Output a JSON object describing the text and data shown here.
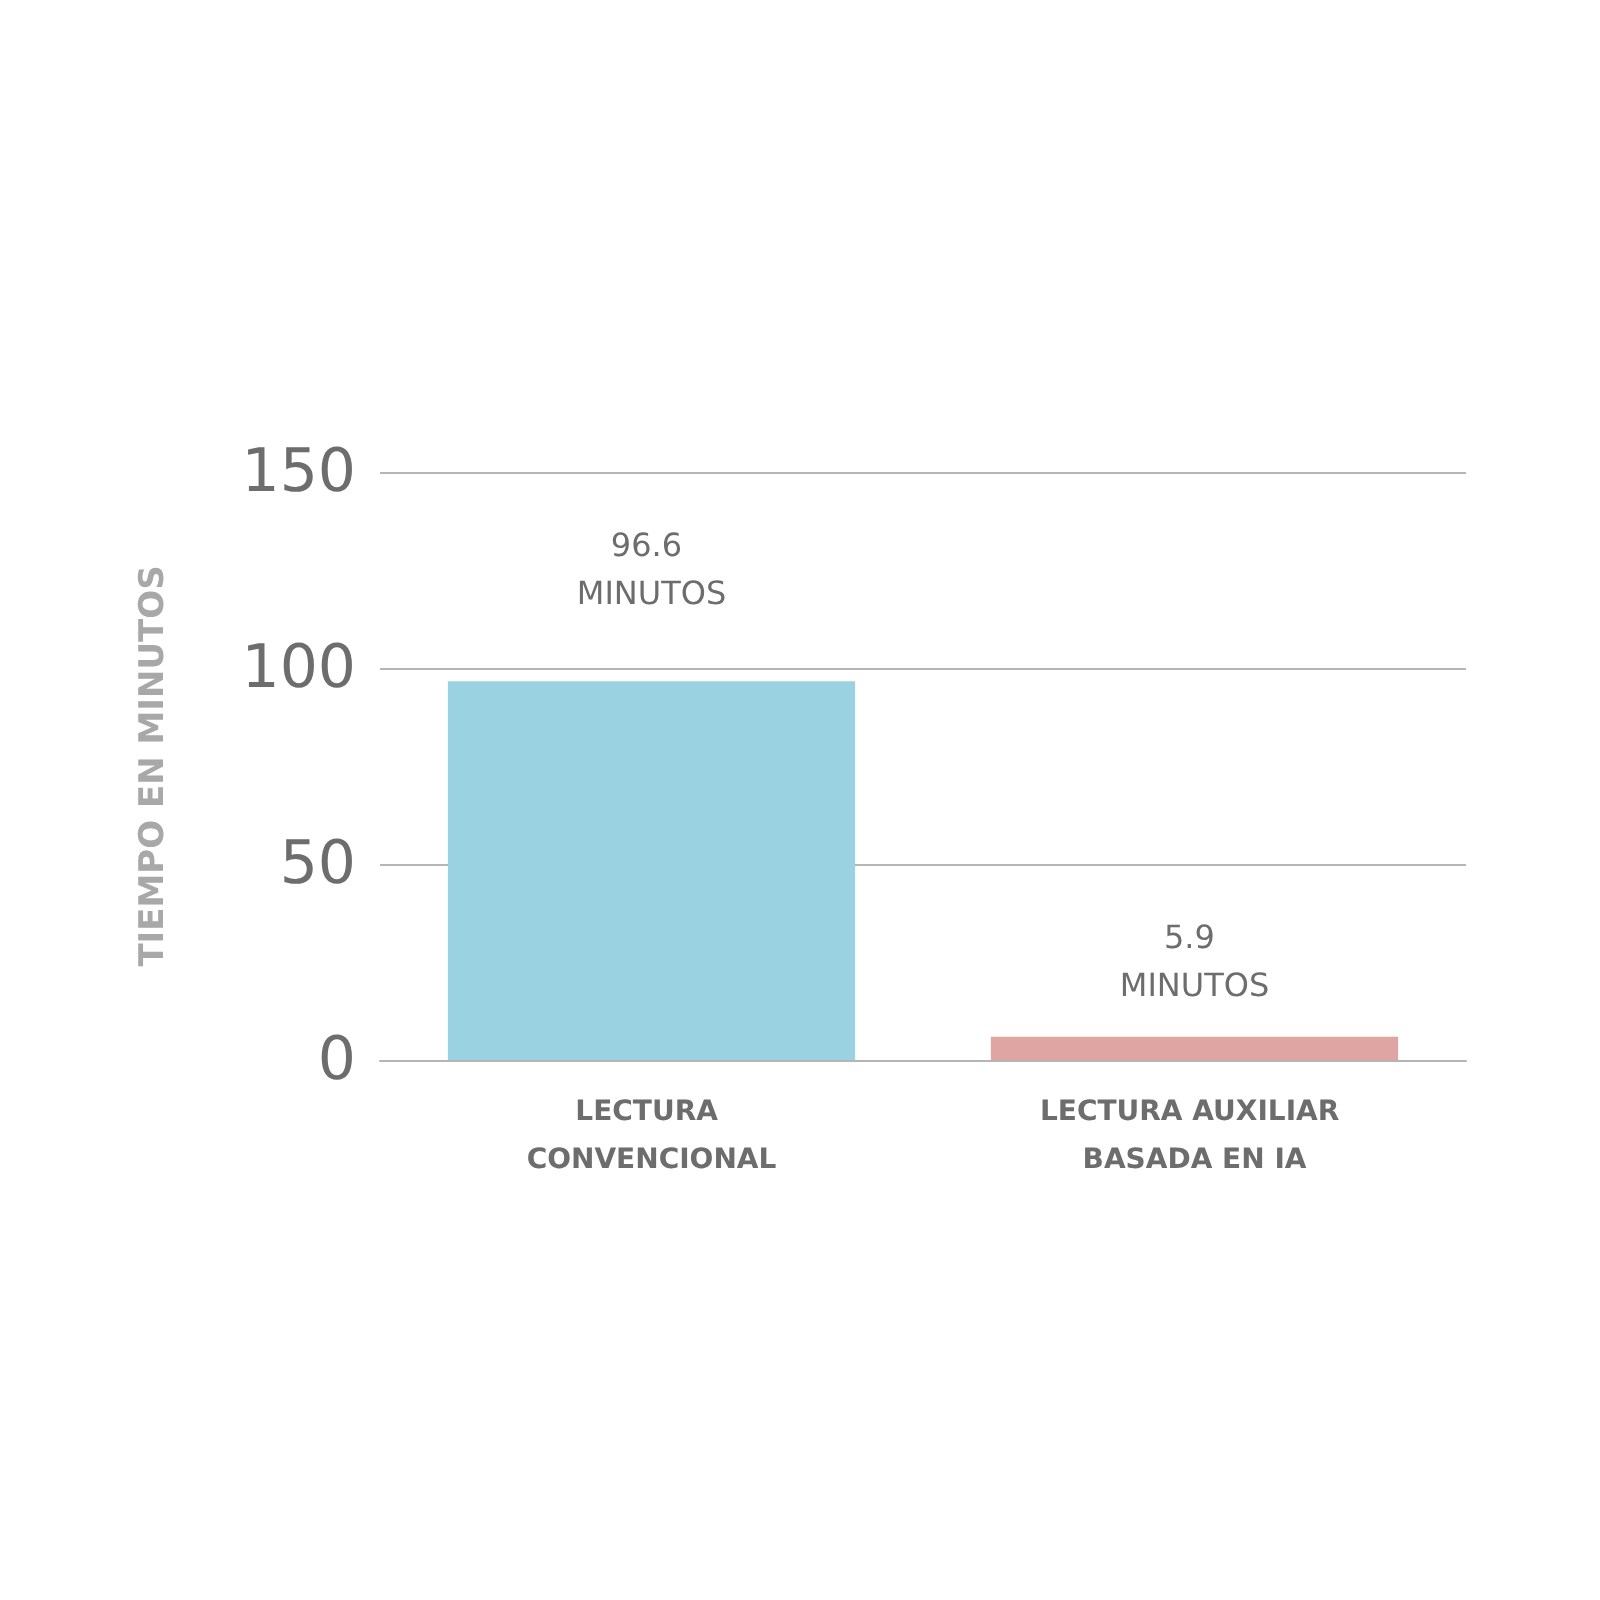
{
  "chart_data": {
    "type": "bar",
    "ylabel": "TIEMPO EN MINUTOS",
    "categories": [
      "LECTURA CONVENCIONAL",
      "LECTURA AUXILIAR BASADA EN IA"
    ],
    "values": [
      96.6,
      5.9
    ],
    "colors": [
      "#9ad2e2",
      "#dea5a2"
    ],
    "value_labels": [
      "96.6 MINUTOS",
      "5.9 MINUTOS"
    ],
    "ylim": [
      0,
      150
    ],
    "yticks": [
      0,
      50,
      100,
      150
    ],
    "grid": "y"
  }
}
